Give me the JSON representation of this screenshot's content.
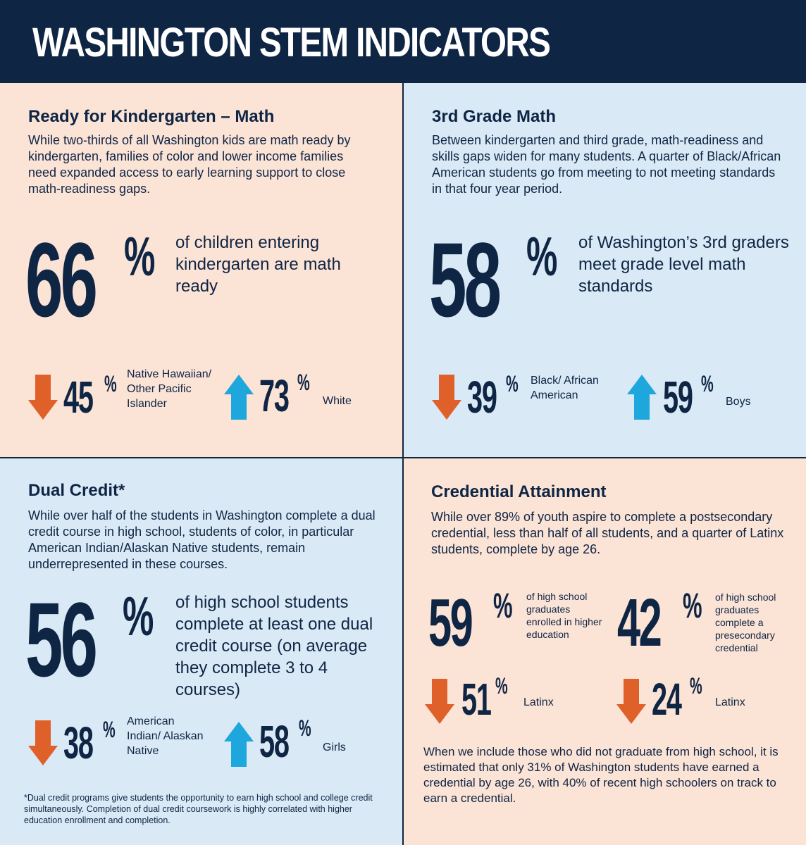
{
  "header": {
    "title": "WASHINGTON STEM INDICATORS"
  },
  "colors": {
    "navy": "#0f2544",
    "peach": "#fbe3d6",
    "light_blue": "#d9e9f6",
    "down_orange": "#e0602a",
    "up_blue": "#1ea7dc"
  },
  "kindergarten": {
    "title": "Ready for Kindergarten – Math",
    "intro": "While two-thirds of all Washington kids are math ready by kindergarten, families of color and lower income families need expanded access to early learning support to close math-readiness gaps.",
    "main_value": "66",
    "main_suffix": "%",
    "main_desc": "of children entering kindergarten are math ready",
    "low": {
      "direction": "down",
      "value": "45",
      "suffix": "%",
      "label": "Native Hawaiian/ Other Pacific Islander"
    },
    "high": {
      "direction": "up",
      "value": "73",
      "suffix": "%",
      "label": "White"
    }
  },
  "third_grade": {
    "title": "3rd Grade Math",
    "intro": "Between kindergarten and third grade, math-readiness and skills gaps widen for many students. A quarter of Black/African American students go from meeting to not meeting standards in that four year period.",
    "main_value": "58",
    "main_suffix": "%",
    "main_desc": "of Washington’s 3rd graders meet grade level math standards",
    "low": {
      "direction": "down",
      "value": "39",
      "suffix": "%",
      "label": "Black/ African American"
    },
    "high": {
      "direction": "up",
      "value": "59",
      "suffix": "%",
      "label": "Boys"
    }
  },
  "dual_credit": {
    "title": "Dual Credit*",
    "intro": "While over half of the students in Washington complete a dual credit course in high school, students of color, in particular American Indian/Alaskan Native students, remain underrepresented in these courses.",
    "main_value": "56",
    "main_suffix": "%",
    "main_desc": "of high school students complete at least one dual credit course (on average they complete 3 to 4 courses)",
    "low": {
      "direction": "down",
      "value": "38",
      "suffix": "%",
      "label": "American Indian/ Alaskan Native"
    },
    "high": {
      "direction": "up",
      "value": "58",
      "suffix": "%",
      "label": "Girls"
    },
    "footnote": "*Dual credit programs give students the opportunity to earn high school and college credit simultaneously. Completion of dual credit coursework is highly correlated with higher education enrollment and completion."
  },
  "credential": {
    "title": "Credential Attainment",
    "intro": "While over 89% of youth aspire to complete a postsecondary credential, less than half of all students, and a quarter of Latinx students, complete by age 26.",
    "enrolled": {
      "value": "59",
      "suffix": "%",
      "desc": "of high school graduates enrolled in higher education"
    },
    "completed": {
      "value": "42",
      "suffix": "%",
      "desc": "of high school graduates complete a presecondary credential"
    },
    "enrolled_latinx": {
      "direction": "down",
      "value": "51",
      "suffix": "%",
      "label": "Latinx"
    },
    "completed_latinx": {
      "direction": "down",
      "value": "24",
      "suffix": "%",
      "label": "Latinx"
    },
    "outro": "When we include those who did not graduate from high school, it is estimated that only 31% of Washington students have earned a credential by age 26, with 40% of recent high schoolers on track to earn a credential."
  }
}
